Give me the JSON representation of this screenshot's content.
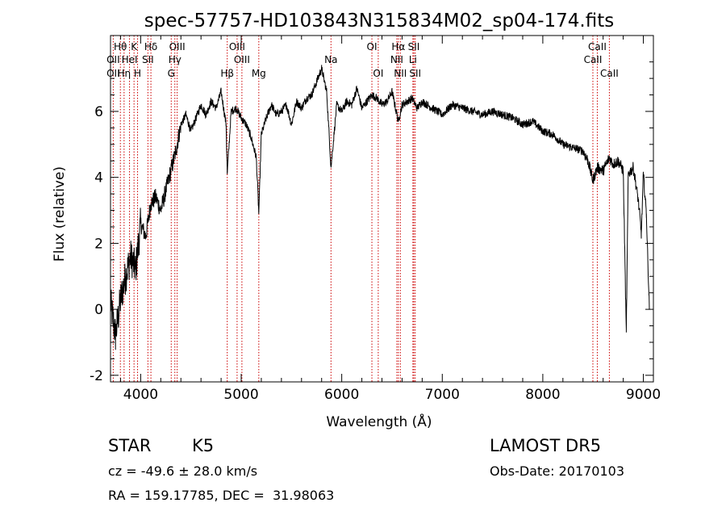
{
  "chart_data": {
    "type": "line",
    "title": "spec-57757-HD103843N315834M02_sp04-174.fits",
    "xlabel": "Wavelength (Å)",
    "ylabel": "Flux (relative)",
    "xlim": [
      3700,
      9100
    ],
    "ylim": [
      -2.2,
      8.3
    ],
    "xticks": [
      4000,
      5000,
      6000,
      7000,
      8000,
      9000
    ],
    "yticks": [
      -2,
      0,
      2,
      4,
      6
    ],
    "grid": false,
    "spectral_lines": [
      {
        "label": "Hθ",
        "wavelength": 3798,
        "row": 1
      },
      {
        "label": "K",
        "wavelength": 3934,
        "row": 1
      },
      {
        "label": "Hδ",
        "wavelength": 4102,
        "row": 1
      },
      {
        "label": "OIII",
        "wavelength": 4363,
        "row": 1
      },
      {
        "label": "OIII",
        "wavelength": 4959,
        "row": 1
      },
      {
        "label": "OI",
        "wavelength": 6300,
        "row": 1
      },
      {
        "label": "Hα",
        "wavelength": 6563,
        "row": 1
      },
      {
        "label": "SII",
        "wavelength": 6717,
        "row": 1
      },
      {
        "label": "CaII",
        "wavelength": 8542,
        "row": 1
      },
      {
        "label": "OII",
        "wavelength": 3727,
        "row": 2
      },
      {
        "label": "HeI",
        "wavelength": 3889,
        "row": 2
      },
      {
        "label": "SII",
        "wavelength": 4072,
        "row": 2
      },
      {
        "label": "Hγ",
        "wavelength": 4340,
        "row": 2
      },
      {
        "label": "OIII",
        "wavelength": 5007,
        "row": 2
      },
      {
        "label": "Na",
        "wavelength": 5893,
        "row": 2
      },
      {
        "label": "NII",
        "wavelength": 6548,
        "row": 2
      },
      {
        "label": "Li",
        "wavelength": 6708,
        "row": 2
      },
      {
        "label": "CaII",
        "wavelength": 8498,
        "row": 2
      },
      {
        "label": "OII",
        "wavelength": 3727,
        "row": 3
      },
      {
        "label": "Hη",
        "wavelength": 3835,
        "row": 3
      },
      {
        "label": "H",
        "wavelength": 3969,
        "row": 3
      },
      {
        "label": "G",
        "wavelength": 4304,
        "row": 3
      },
      {
        "label": "Hβ",
        "wavelength": 4861,
        "row": 3
      },
      {
        "label": "Mg",
        "wavelength": 5175,
        "row": 3
      },
      {
        "label": "OI",
        "wavelength": 6363,
        "row": 3
      },
      {
        "label": "NII",
        "wavelength": 6583,
        "row": 3
      },
      {
        "label": "SII",
        "wavelength": 6731,
        "row": 3
      },
      {
        "label": "CaII",
        "wavelength": 8662,
        "row": 3
      }
    ],
    "series": [
      {
        "x": [
          3700,
          3750,
          3800,
          3850,
          3900,
          3950,
          4000,
          4050,
          4100,
          4150,
          4200,
          4250,
          4300,
          4350,
          4400,
          4450,
          4500,
          4550,
          4600,
          4650,
          4700,
          4750,
          4800,
          4850,
          4861,
          4900,
          4950,
          5000,
          5050,
          5100,
          5150,
          5175,
          5200,
          5250,
          5300,
          5350,
          5400,
          5450,
          5500,
          5550,
          5600,
          5650,
          5700,
          5750,
          5800,
          5850,
          5893,
          5950,
          6000,
          6050,
          6100,
          6150,
          6200,
          6250,
          6300,
          6350,
          6400,
          6450,
          6500,
          6563,
          6600,
          6650,
          6700,
          6750,
          6800,
          6850,
          6900,
          6950,
          7000,
          7100,
          7200,
          7300,
          7400,
          7500,
          7600,
          7700,
          7800,
          7900,
          8000,
          8100,
          8200,
          8300,
          8400,
          8450,
          8498,
          8542,
          8600,
          8662,
          8700,
          8750,
          8800,
          8830,
          8850,
          8900,
          8950,
          8980,
          9000,
          9030,
          9060
        ],
        "y": [
          0.2,
          -0.8,
          0.3,
          1.0,
          1.6,
          1.2,
          2.6,
          2.2,
          3.2,
          3.4,
          3.0,
          3.6,
          4.2,
          4.8,
          5.6,
          5.9,
          5.4,
          5.8,
          6.2,
          5.9,
          6.3,
          6.1,
          6.6,
          5.6,
          4.1,
          6.0,
          6.1,
          5.8,
          5.6,
          5.2,
          4.6,
          2.9,
          5.3,
          5.8,
          6.2,
          5.9,
          6.0,
          6.2,
          5.6,
          6.3,
          6.1,
          6.4,
          6.5,
          6.9,
          7.3,
          6.6,
          4.3,
          6.2,
          6.0,
          6.3,
          6.2,
          6.7,
          6.1,
          6.3,
          6.5,
          6.4,
          6.2,
          6.3,
          6.6,
          5.7,
          6.2,
          6.3,
          6.4,
          6.1,
          6.3,
          6.2,
          6.1,
          6.0,
          5.9,
          6.2,
          6.1,
          6.0,
          5.9,
          6.0,
          5.9,
          5.8,
          5.6,
          5.7,
          5.4,
          5.3,
          5.0,
          4.9,
          4.8,
          4.5,
          3.9,
          4.3,
          4.2,
          4.6,
          4.4,
          4.5,
          4.2,
          -0.7,
          4.1,
          4.3,
          3.3,
          2.3,
          4.1,
          2.9,
          0.0
        ]
      }
    ]
  },
  "info": {
    "object_class": "STAR",
    "subclass": "K5",
    "survey": "LAMOST DR5",
    "cz": "cz = -49.6 ± 28.0 km/s",
    "obs_date": "Obs-Date: 20170103",
    "coords": "RA = 159.17785, DEC =  31.98063"
  }
}
